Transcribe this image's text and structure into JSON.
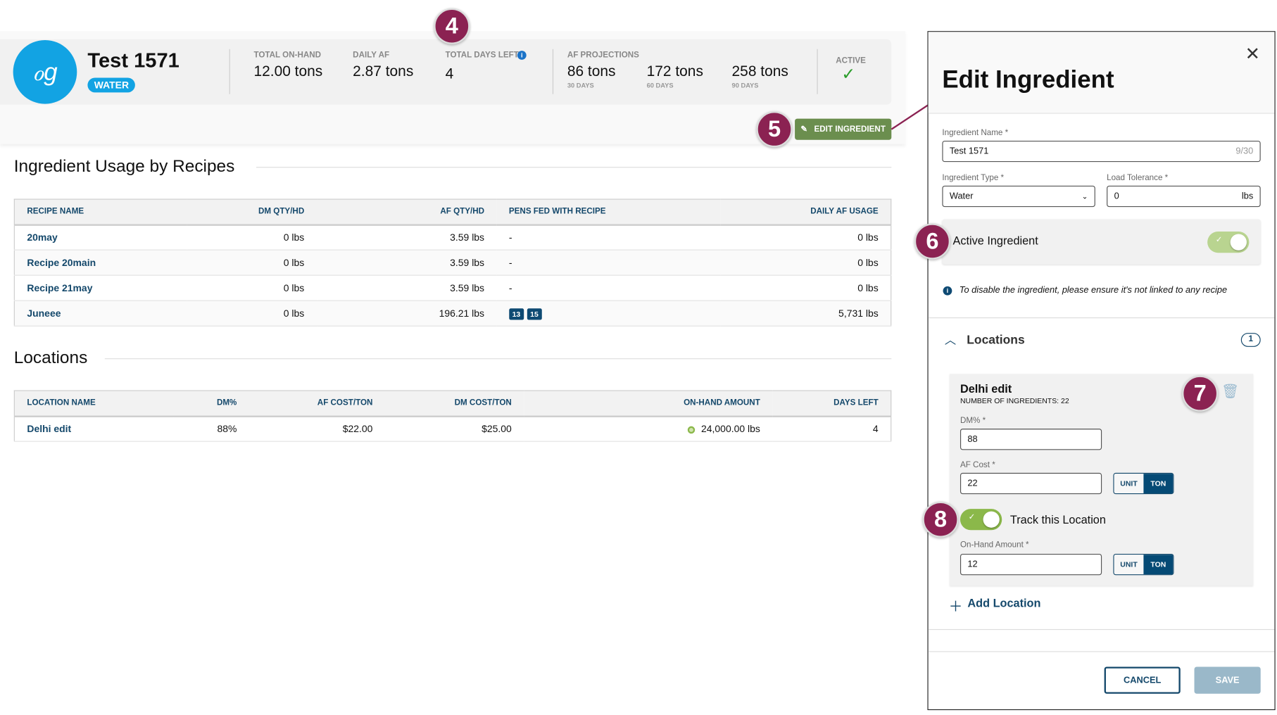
{
  "ingredient": {
    "name": "Test 1571",
    "type_badge": "WATER",
    "icon": "water-drops-icon"
  },
  "stats": {
    "total_on_hand": {
      "label": "TOTAL ON-HAND",
      "value": "12.00 tons"
    },
    "daily_af": {
      "label": "DAILY AF",
      "value": "2.87 tons"
    },
    "total_days_left": {
      "label": "TOTAL DAYS LEFT",
      "value": "4"
    },
    "af_projections": {
      "label": "AF PROJECTIONS",
      "items": [
        {
          "value": "86 tons",
          "period": "30 DAYS"
        },
        {
          "value": "172 tons",
          "period": "60 DAYS"
        },
        {
          "value": "258 tons",
          "period": "90 DAYS"
        }
      ]
    },
    "active": {
      "label": "ACTIVE"
    }
  },
  "edit_button": "EDIT INGREDIENT",
  "annotations": [
    "4",
    "5",
    "6",
    "7",
    "8"
  ],
  "usage": {
    "title": "Ingredient Usage by Recipes",
    "columns": [
      "RECIPE NAME",
      "DM QTY/HD",
      "AF QTY/HD",
      "PENS FED WITH RECIPE",
      "DAILY AF USAGE"
    ],
    "rows": [
      {
        "name": "20may",
        "dm": "0 lbs",
        "af": "3.59 lbs",
        "pens": "-",
        "daily": "0 lbs"
      },
      {
        "name": "Recipe 20main",
        "dm": "0 lbs",
        "af": "3.59 lbs",
        "pens": "-",
        "daily": "0 lbs"
      },
      {
        "name": "Recipe 21may",
        "dm": "0 lbs",
        "af": "3.59 lbs",
        "pens": "-",
        "daily": "0 lbs"
      },
      {
        "name": "Juneee",
        "dm": "0 lbs",
        "af": "196.21 lbs",
        "pens_tags": [
          "13",
          "15"
        ],
        "daily": "5,731 lbs"
      }
    ]
  },
  "locations": {
    "title": "Locations",
    "columns": [
      "LOCATION NAME",
      "DM%",
      "AF COST/TON",
      "DM COST/TON",
      "ON-HAND AMOUNT",
      "DAYS LEFT"
    ],
    "rows": [
      {
        "name": "Delhi edit",
        "dm": "88%",
        "af_cost": "$22.00",
        "dm_cost": "$25.00",
        "on_hand": "24,000.00 lbs",
        "days": "4"
      }
    ]
  },
  "panel": {
    "title": "Edit Ingredient",
    "name_label": "Ingredient Name *",
    "name_value": "Test 1571",
    "name_count": "9/30",
    "type_label": "Ingredient Type *",
    "type_value": "Water",
    "tolerance_label": "Load Tolerance *",
    "tolerance_value": "0",
    "tolerance_unit": "lbs",
    "active_label": "Active Ingredient",
    "active_on": true,
    "info": "To disable the ingredient, please ensure it's not linked to any recipe",
    "locations_label": "Locations",
    "locations_count": "1",
    "location": {
      "name": "Delhi edit",
      "sub": "NUMBER OF INGREDIENTS: 22",
      "dm_label": "DM% *",
      "dm_value": "88",
      "af_label": "AF Cost *",
      "af_value": "22",
      "unit": "UNIT",
      "ton": "TON",
      "track_label": "Track this Location",
      "track_on": true,
      "onhand_label": "On-Hand Amount *",
      "onhand_value": "12"
    },
    "add_location": "Add Location",
    "cancel": "CANCEL",
    "save": "SAVE"
  },
  "colors": {
    "brand_blue": "#12a3e3",
    "navy": "#14486b",
    "green_button": "#6b8e4e",
    "annotation": "#8b2252",
    "toggle_green": "#8bb84a"
  }
}
